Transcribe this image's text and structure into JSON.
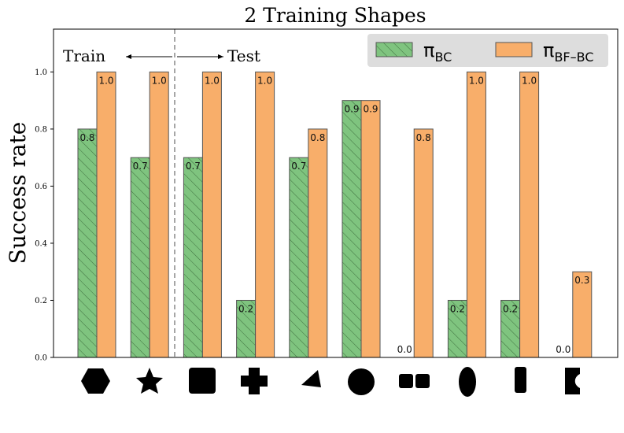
{
  "chart_data": {
    "type": "bar",
    "title": "2 Training Shapes",
    "xlabel": "",
    "ylabel": "Success rate",
    "ylim": [
      0,
      1.15
    ],
    "yticks": [
      "0.0",
      "0.2",
      "0.4",
      "0.6",
      "0.8",
      "1.0"
    ],
    "categories": [
      "hexagon",
      "star",
      "square",
      "cross",
      "triangle",
      "circle",
      "two-squares",
      "ellipse",
      "bar",
      "c-shape"
    ],
    "series": [
      {
        "name": "πBC",
        "legend_main": "π",
        "legend_sub": "BC",
        "color": "#7fc47f",
        "hatch": "diagonal",
        "values": [
          0.8,
          0.7,
          0.7,
          0.2,
          0.7,
          0.9,
          0.0,
          0.2,
          0.2,
          0.0
        ],
        "labels": [
          "0.8",
          "0.7",
          "0.7",
          "0.2",
          "0.7",
          "0.9",
          "0.0",
          "0.2",
          "0.2",
          "0.0"
        ]
      },
      {
        "name": "πBF-BC",
        "legend_main": "π",
        "legend_sub": "BF–BC",
        "color": "#f8ae6a",
        "hatch": "none",
        "values": [
          1.0,
          1.0,
          1.0,
          1.0,
          0.8,
          0.9,
          0.8,
          1.0,
          1.0,
          0.3
        ],
        "labels": [
          "1.0",
          "1.0",
          "1.0",
          "1.0",
          "0.8",
          "0.9",
          "0.8",
          "1.0",
          "1.0",
          "0.3"
        ]
      }
    ],
    "legend_position": "top-right",
    "annotations": {
      "train": "Train",
      "test": "Test"
    }
  }
}
